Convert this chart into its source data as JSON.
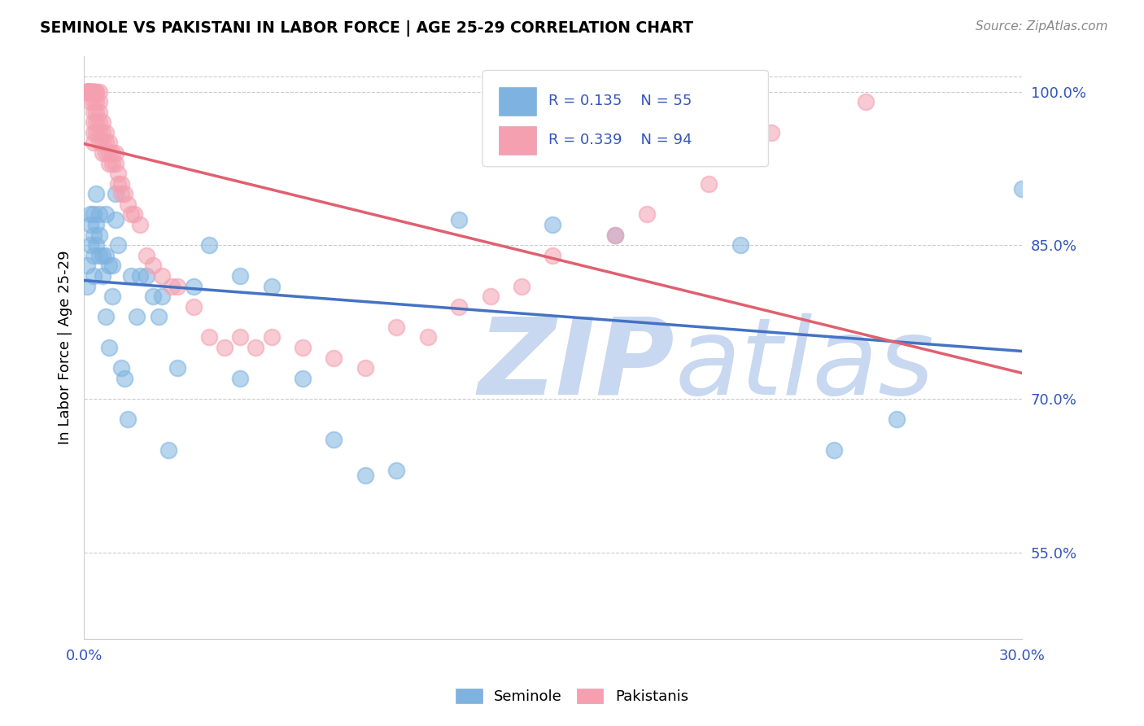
{
  "title": "SEMINOLE VS PAKISTANI IN LABOR FORCE | AGE 25-29 CORRELATION CHART",
  "source": "Source: ZipAtlas.com",
  "ylabel": "In Labor Force | Age 25-29",
  "xlim": [
    0.0,
    0.3
  ],
  "ylim": [
    0.465,
    1.035
  ],
  "seminole_color": "#7EB3E0",
  "pakistani_color": "#F4A0B0",
  "seminole_line_color": "#4472C4",
  "pakistani_line_color": "#E06070",
  "seminole_R": 0.135,
  "seminole_N": 55,
  "pakistani_R": 0.339,
  "pakistani_N": 94,
  "watermark": "ZIPatlas",
  "watermark_color": "#C8D8F0",
  "sem_x": [
    0.001,
    0.001,
    0.002,
    0.002,
    0.002,
    0.003,
    0.003,
    0.003,
    0.003,
    0.004,
    0.004,
    0.004,
    0.005,
    0.005,
    0.005,
    0.006,
    0.006,
    0.007,
    0.007,
    0.007,
    0.008,
    0.008,
    0.009,
    0.009,
    0.01,
    0.01,
    0.011,
    0.012,
    0.013,
    0.014,
    0.015,
    0.017,
    0.018,
    0.02,
    0.022,
    0.024,
    0.025,
    0.027,
    0.03,
    0.035,
    0.04,
    0.05,
    0.06,
    0.08,
    0.09,
    0.1,
    0.12,
    0.15,
    0.17,
    0.21,
    0.24,
    0.26,
    0.3,
    0.05,
    0.07
  ],
  "sem_y": [
    0.83,
    0.81,
    0.87,
    0.85,
    0.88,
    0.86,
    0.82,
    0.84,
    0.88,
    0.87,
    0.85,
    0.9,
    0.84,
    0.86,
    0.88,
    0.82,
    0.84,
    0.78,
    0.84,
    0.88,
    0.83,
    0.75,
    0.83,
    0.8,
    0.9,
    0.875,
    0.85,
    0.73,
    0.72,
    0.68,
    0.82,
    0.78,
    0.82,
    0.82,
    0.8,
    0.78,
    0.8,
    0.65,
    0.73,
    0.81,
    0.85,
    0.82,
    0.81,
    0.66,
    0.625,
    0.63,
    0.875,
    0.87,
    0.86,
    0.85,
    0.65,
    0.68,
    0.905,
    0.72,
    0.72
  ],
  "pak_x": [
    0.001,
    0.001,
    0.001,
    0.001,
    0.001,
    0.001,
    0.001,
    0.001,
    0.001,
    0.001,
    0.001,
    0.001,
    0.001,
    0.001,
    0.001,
    0.002,
    0.002,
    0.002,
    0.002,
    0.002,
    0.002,
    0.002,
    0.002,
    0.002,
    0.003,
    0.003,
    0.003,
    0.003,
    0.003,
    0.003,
    0.003,
    0.003,
    0.003,
    0.003,
    0.004,
    0.004,
    0.004,
    0.004,
    0.004,
    0.004,
    0.005,
    0.005,
    0.005,
    0.005,
    0.005,
    0.005,
    0.006,
    0.006,
    0.006,
    0.006,
    0.007,
    0.007,
    0.007,
    0.008,
    0.008,
    0.008,
    0.009,
    0.009,
    0.01,
    0.01,
    0.011,
    0.011,
    0.012,
    0.012,
    0.013,
    0.014,
    0.015,
    0.016,
    0.018,
    0.02,
    0.022,
    0.025,
    0.028,
    0.03,
    0.035,
    0.04,
    0.045,
    0.05,
    0.055,
    0.06,
    0.07,
    0.08,
    0.09,
    0.1,
    0.11,
    0.12,
    0.13,
    0.14,
    0.15,
    0.17,
    0.18,
    0.2,
    0.22,
    0.25
  ],
  "pak_y": [
    1.0,
    1.0,
    1.0,
    1.0,
    1.0,
    1.0,
    1.0,
    1.0,
    1.0,
    1.0,
    1.0,
    1.0,
    1.0,
    1.0,
    1.0,
    1.0,
    1.0,
    1.0,
    1.0,
    1.0,
    1.0,
    1.0,
    1.0,
    0.99,
    1.0,
    1.0,
    1.0,
    1.0,
    1.0,
    0.99,
    0.98,
    0.97,
    0.96,
    0.95,
    1.0,
    1.0,
    0.99,
    0.98,
    0.97,
    0.96,
    1.0,
    0.99,
    0.98,
    0.97,
    0.96,
    0.95,
    0.97,
    0.96,
    0.95,
    0.94,
    0.96,
    0.95,
    0.94,
    0.95,
    0.94,
    0.93,
    0.94,
    0.93,
    0.94,
    0.93,
    0.92,
    0.91,
    0.91,
    0.9,
    0.9,
    0.89,
    0.88,
    0.88,
    0.87,
    0.84,
    0.83,
    0.82,
    0.81,
    0.81,
    0.79,
    0.76,
    0.75,
    0.76,
    0.75,
    0.76,
    0.75,
    0.74,
    0.73,
    0.77,
    0.76,
    0.79,
    0.8,
    0.81,
    0.84,
    0.86,
    0.88,
    0.91,
    0.96,
    0.99
  ]
}
